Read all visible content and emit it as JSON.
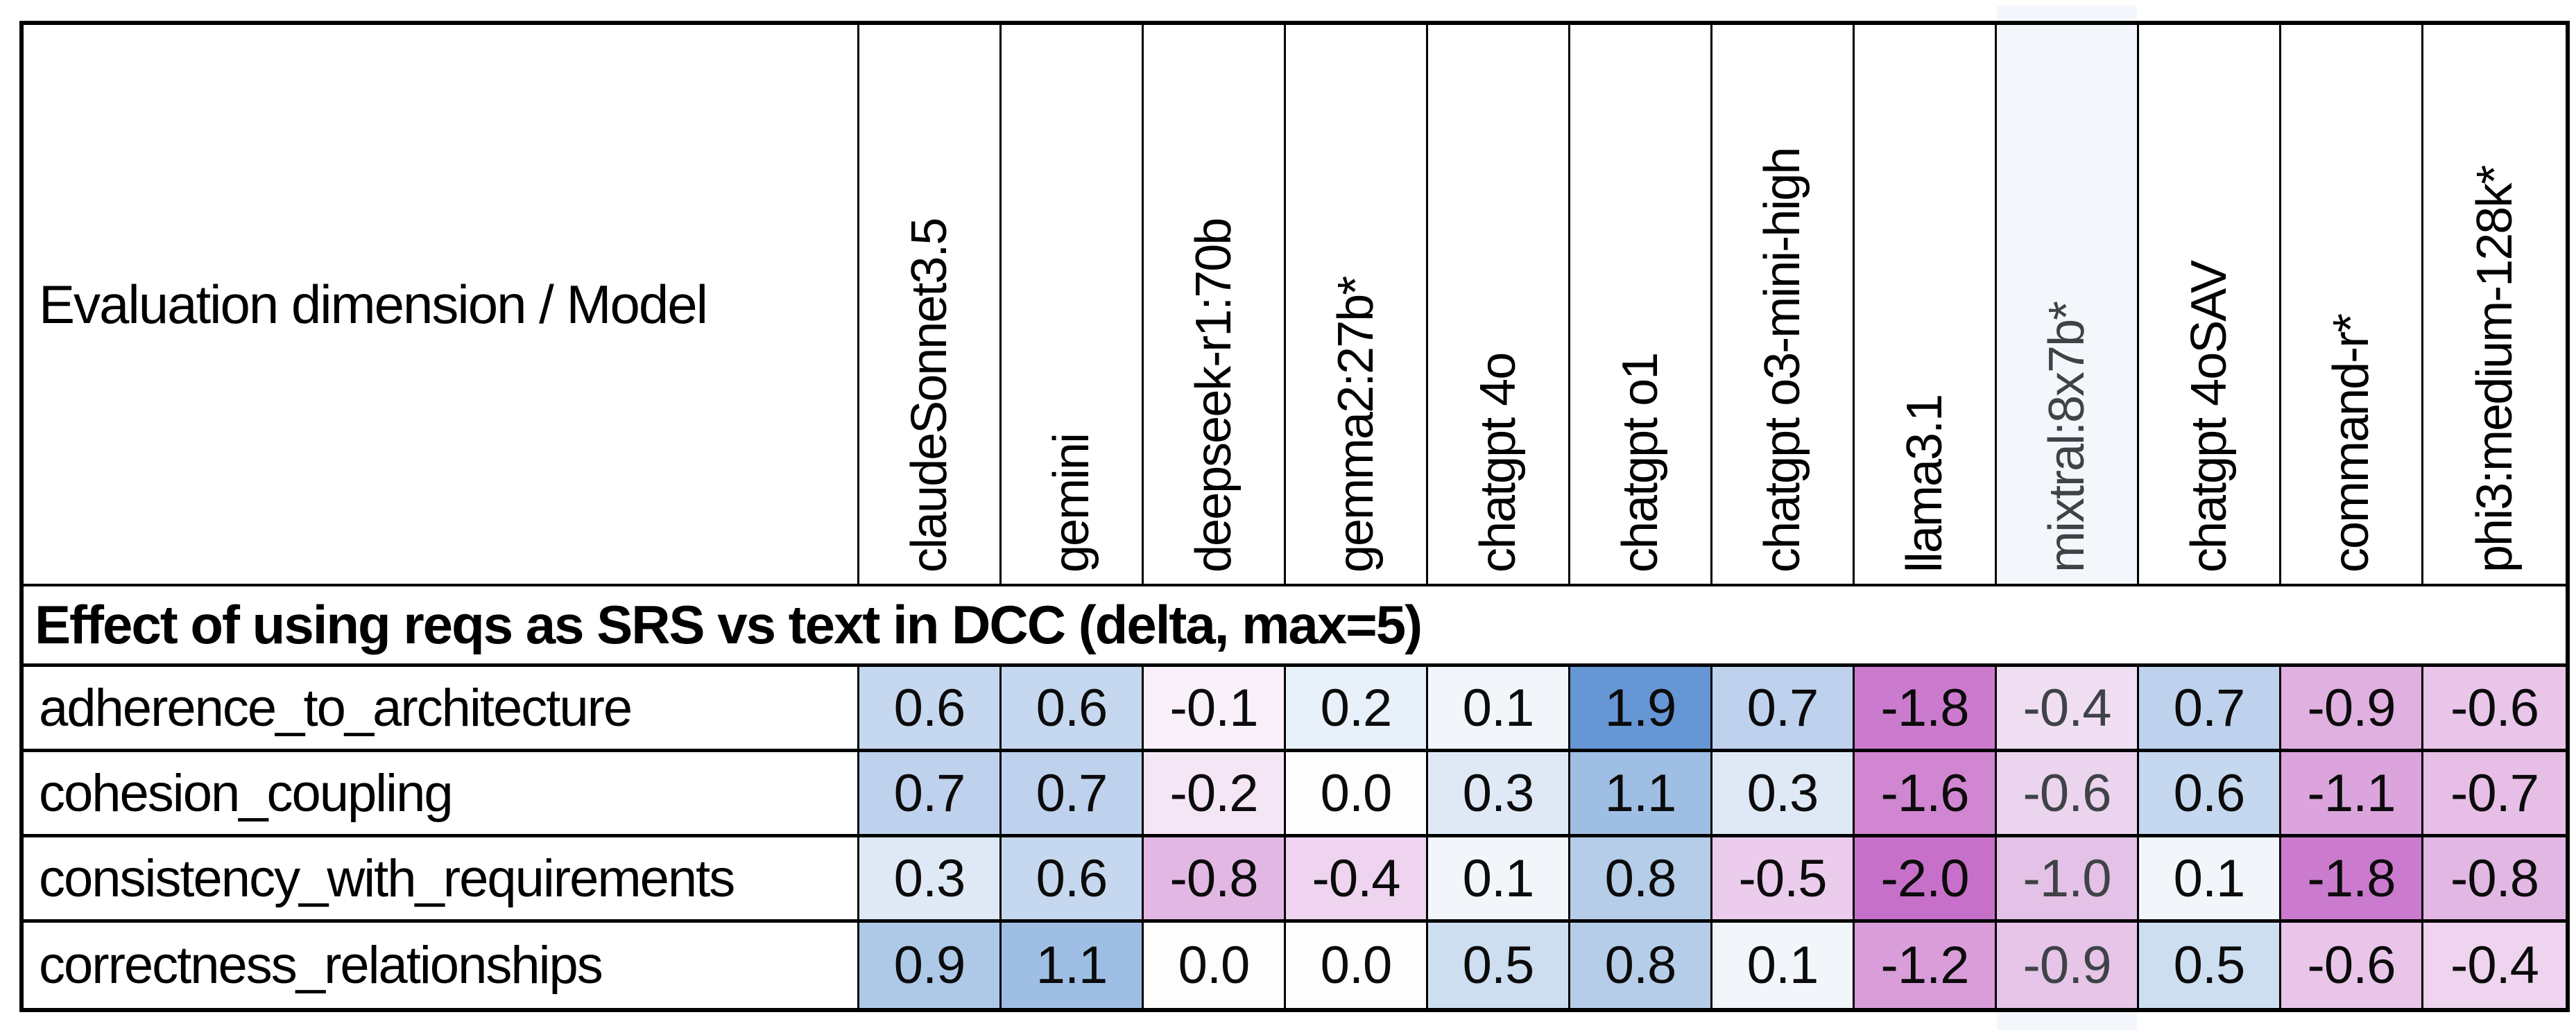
{
  "table": {
    "corner_label": "Evaluation dimension / Model",
    "section_title": "Effect of using reqs as SRS vs text in DCC (delta, max=5)",
    "highlighted_model": "mixtral:8x7b*",
    "colors": {
      "positive_max": "#6697d4",
      "negative_max": "#c770c9",
      "zero_cell": "#fdfdfe",
      "grid_line": "#000000",
      "highlight_tint": "#f3f7fb",
      "highlight_text": "#3f4347",
      "value_text": "#0b0b0b"
    }
  },
  "chart_data": {
    "type": "heatmap",
    "title": "Effect of using reqs as SRS vs text in DCC (delta, max=5)",
    "x_labels": [
      "claudeSonnet3.5",
      "gemini",
      "deepseek-r1:70b",
      "gemma2:27b*",
      "chatgpt 4o",
      "chatgpt o1",
      "chatgpt o3-mini-high",
      "llama3.1",
      "mixtral:8x7b*",
      "chatgpt 4oSAV",
      "command-r*",
      "phi3:medium-128k*"
    ],
    "y_labels": [
      "adherence_to_architecture",
      "cohesion_coupling",
      "consistency_with_requirements",
      "correctness_relationships"
    ],
    "values": [
      [
        0.6,
        0.6,
        -0.1,
        0.2,
        0.1,
        1.9,
        0.7,
        -1.8,
        -0.4,
        0.7,
        -0.9,
        -0.6
      ],
      [
        0.7,
        0.7,
        -0.2,
        0.0,
        0.3,
        1.1,
        0.3,
        -1.6,
        -0.6,
        0.6,
        -1.1,
        -0.7
      ],
      [
        0.3,
        0.6,
        -0.8,
        -0.4,
        0.1,
        0.8,
        -0.5,
        -2.0,
        -1.0,
        0.1,
        -1.8,
        -0.8
      ],
      [
        0.9,
        1.1,
        0.0,
        0.0,
        0.5,
        0.8,
        0.1,
        -1.2,
        -0.9,
        0.5,
        -0.6,
        -0.4
      ]
    ],
    "value_range": [
      -2.0,
      1.9
    ],
    "legend": "none",
    "grid": true,
    "positive_color": "#6697d4",
    "negative_color": "#c770c9",
    "highlighted_column": "mixtral:8x7b*"
  }
}
